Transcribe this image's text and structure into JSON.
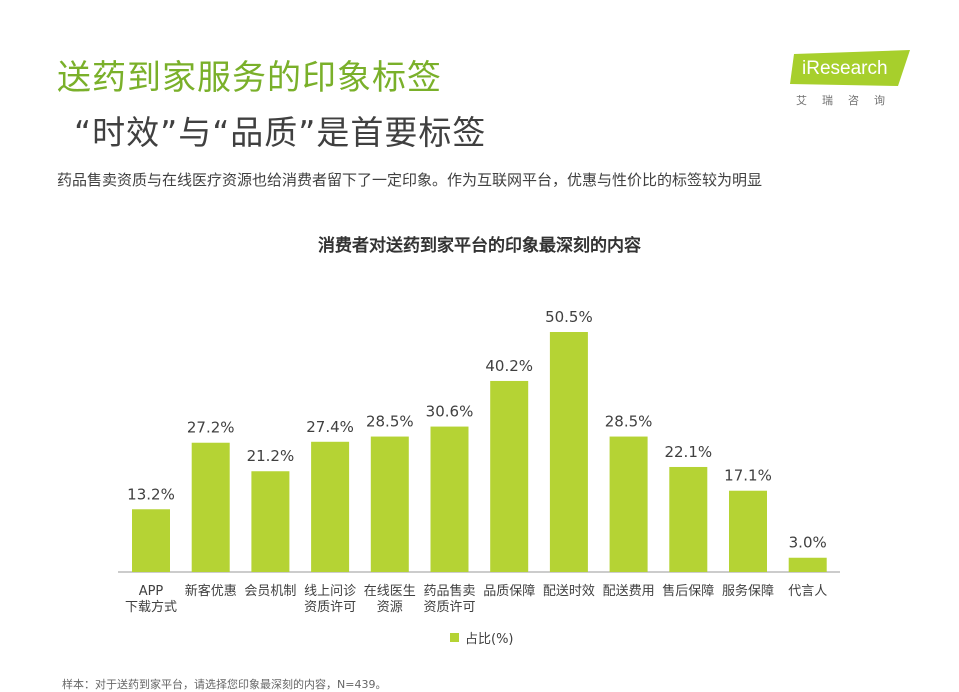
{
  "header": {
    "title_line1": "送药到家服务的印象标签",
    "title_line2": "“时效”与“品质”是首要标签",
    "subtitle": "药品售卖资质与在线医疗资源也给消费者留下了一定印象。作为互联网平台，优惠与性价比的标签较为明显"
  },
  "logo": {
    "name": "iResearch",
    "sub": "艾瑞咨询"
  },
  "footnote": "样本：对于送药到家平台，请选择您印象最深刻的内容，N=439。",
  "chart_data": {
    "type": "bar",
    "title": "消费者对送药到家平台的印象最深刻的内容",
    "categories": [
      [
        "APP",
        "下载方式"
      ],
      [
        "新客优惠"
      ],
      [
        "会员机制"
      ],
      [
        "线上问诊",
        "资质许可"
      ],
      [
        "在线医生",
        "资源"
      ],
      [
        "药品售卖",
        "资质许可"
      ],
      [
        "品质保障"
      ],
      [
        "配送时效"
      ],
      [
        "配送费用"
      ],
      [
        "售后保障"
      ],
      [
        "服务保障"
      ],
      [
        "代言人"
      ]
    ],
    "values": [
      13.2,
      27.2,
      21.2,
      27.4,
      28.5,
      30.6,
      40.2,
      50.5,
      28.5,
      22.1,
      17.1,
      3.0
    ],
    "value_labels": [
      "13.2%",
      "27.2%",
      "21.2%",
      "27.4%",
      "28.5%",
      "30.6%",
      "40.2%",
      "50.5%",
      "28.5%",
      "22.1%",
      "17.1%",
      "3.0%"
    ],
    "legend": "占比(%)",
    "ylim": [
      0,
      50.5
    ],
    "grid": false,
    "legend_position": "bottom",
    "bar_color": "#b5d334"
  }
}
